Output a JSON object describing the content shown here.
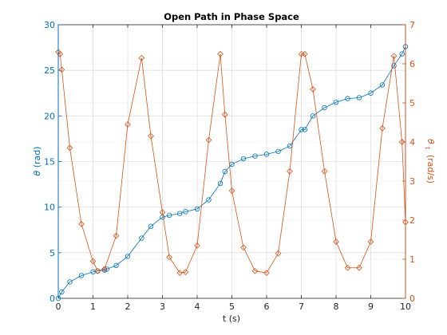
{
  "chart_data": {
    "type": "line",
    "title": "Open Path in Phase Space",
    "xlabel": "t (s)",
    "ylabel_left": {
      "symbol": "θ",
      "unit": "(rad)"
    },
    "ylabel_right": {
      "symbol": "θ",
      "subscript": "t",
      "unit": "(rad/s)"
    },
    "xlim": [
      0,
      10
    ],
    "ylim_left": [
      0,
      30
    ],
    "ylim_right": [
      0,
      7
    ],
    "xticks": [
      "0",
      "1",
      "2",
      "3",
      "4",
      "5",
      "6",
      "7",
      "8",
      "9",
      "10"
    ],
    "yticks_left": [
      "0",
      "5",
      "10",
      "15",
      "20",
      "25",
      "30"
    ],
    "yticks_right": [
      "0",
      "1",
      "2",
      "3",
      "4",
      "5",
      "6",
      "7"
    ],
    "grid": true,
    "x": [
      0,
      0.1,
      0.333,
      0.667,
      1.0,
      1.133,
      1.333,
      1.4,
      1.667,
      2.0,
      2.4,
      2.667,
      3.0,
      3.2,
      3.5,
      3.667,
      4.0,
      4.333,
      4.667,
      4.8,
      5.0,
      5.333,
      5.667,
      6.0,
      6.0,
      6.333,
      6.667,
      7.0,
      7.1,
      7.333,
      7.667,
      8.0,
      8.333,
      8.667,
      9.0,
      9.333,
      9.667,
      9.9,
      10.0
    ],
    "series": [
      {
        "axis": "left",
        "color": "#0072BD",
        "marker": "circle",
        "x": [
          0,
          0.1,
          0.333,
          0.667,
          1.0,
          1.133,
          1.333,
          1.4,
          1.667,
          2.0,
          2.4,
          2.667,
          3.0,
          3.2,
          3.5,
          3.667,
          4.0,
          4.333,
          4.667,
          4.8,
          5.0,
          5.333,
          5.667,
          6.0,
          6.333,
          6.667,
          7.0,
          7.1,
          7.333,
          7.667,
          8.0,
          8.333,
          8.667,
          9.0,
          9.333,
          9.667,
          9.9,
          10.0
        ],
        "values": [
          0.0,
          0.7,
          1.8,
          2.5,
          2.9,
          3.0,
          3.1,
          3.2,
          3.6,
          4.6,
          6.6,
          7.9,
          8.9,
          9.1,
          9.3,
          9.5,
          9.8,
          10.8,
          12.6,
          13.9,
          14.7,
          15.3,
          15.6,
          15.8,
          16.1,
          16.7,
          18.5,
          18.5,
          20.0,
          20.9,
          21.5,
          21.9,
          22.0,
          22.5,
          23.4,
          25.5,
          26.8,
          27.6
        ]
      },
      {
        "axis": "right",
        "color": "#D95319",
        "marker": "diamond",
        "x": [
          0,
          0.05,
          0.1,
          0.333,
          0.667,
          1.0,
          1.133,
          1.333,
          1.667,
          2.0,
          2.4,
          2.667,
          3.0,
          3.2,
          3.5,
          3.667,
          4.0,
          4.333,
          4.667,
          4.8,
          5.0,
          5.333,
          5.667,
          6.0,
          6.333,
          6.667,
          7.0,
          7.1,
          7.333,
          7.667,
          8.0,
          8.333,
          8.667,
          9.0,
          9.333,
          9.667,
          9.9,
          10.0
        ],
        "values": [
          6.3,
          6.25,
          5.85,
          3.85,
          1.9,
          0.95,
          0.7,
          0.75,
          1.6,
          4.45,
          6.15,
          4.15,
          2.2,
          1.05,
          0.65,
          0.67,
          1.35,
          4.05,
          6.25,
          4.7,
          2.75,
          1.3,
          0.7,
          0.65,
          1.15,
          3.25,
          6.25,
          6.25,
          5.35,
          3.25,
          1.45,
          0.78,
          0.78,
          1.45,
          4.35,
          6.2,
          4.0,
          1.95
        ]
      }
    ]
  }
}
